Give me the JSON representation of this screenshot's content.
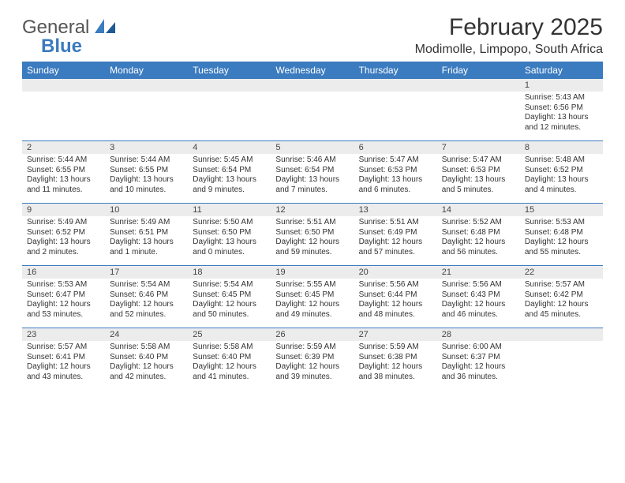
{
  "colors": {
    "accent": "#3b7bbf",
    "header_bg": "#3b7bbf",
    "daynum_bg": "#ececec",
    "text": "#333333",
    "page_bg": "#ffffff"
  },
  "logo": {
    "line1": "General",
    "line2": "Blue"
  },
  "title": "February 2025",
  "location": "Modimolle, Limpopo, South Africa",
  "day_headers": [
    "Sunday",
    "Monday",
    "Tuesday",
    "Wednesday",
    "Thursday",
    "Friday",
    "Saturday"
  ],
  "weeks": [
    [
      {
        "day": "",
        "lines": []
      },
      {
        "day": "",
        "lines": []
      },
      {
        "day": "",
        "lines": []
      },
      {
        "day": "",
        "lines": []
      },
      {
        "day": "",
        "lines": []
      },
      {
        "day": "",
        "lines": []
      },
      {
        "day": "1",
        "lines": [
          "Sunrise: 5:43 AM",
          "Sunset: 6:56 PM",
          "Daylight: 13 hours and 12 minutes."
        ]
      }
    ],
    [
      {
        "day": "2",
        "lines": [
          "Sunrise: 5:44 AM",
          "Sunset: 6:55 PM",
          "Daylight: 13 hours and 11 minutes."
        ]
      },
      {
        "day": "3",
        "lines": [
          "Sunrise: 5:44 AM",
          "Sunset: 6:55 PM",
          "Daylight: 13 hours and 10 minutes."
        ]
      },
      {
        "day": "4",
        "lines": [
          "Sunrise: 5:45 AM",
          "Sunset: 6:54 PM",
          "Daylight: 13 hours and 9 minutes."
        ]
      },
      {
        "day": "5",
        "lines": [
          "Sunrise: 5:46 AM",
          "Sunset: 6:54 PM",
          "Daylight: 13 hours and 7 minutes."
        ]
      },
      {
        "day": "6",
        "lines": [
          "Sunrise: 5:47 AM",
          "Sunset: 6:53 PM",
          "Daylight: 13 hours and 6 minutes."
        ]
      },
      {
        "day": "7",
        "lines": [
          "Sunrise: 5:47 AM",
          "Sunset: 6:53 PM",
          "Daylight: 13 hours and 5 minutes."
        ]
      },
      {
        "day": "8",
        "lines": [
          "Sunrise: 5:48 AM",
          "Sunset: 6:52 PM",
          "Daylight: 13 hours and 4 minutes."
        ]
      }
    ],
    [
      {
        "day": "9",
        "lines": [
          "Sunrise: 5:49 AM",
          "Sunset: 6:52 PM",
          "Daylight: 13 hours and 2 minutes."
        ]
      },
      {
        "day": "10",
        "lines": [
          "Sunrise: 5:49 AM",
          "Sunset: 6:51 PM",
          "Daylight: 13 hours and 1 minute."
        ]
      },
      {
        "day": "11",
        "lines": [
          "Sunrise: 5:50 AM",
          "Sunset: 6:50 PM",
          "Daylight: 13 hours and 0 minutes."
        ]
      },
      {
        "day": "12",
        "lines": [
          "Sunrise: 5:51 AM",
          "Sunset: 6:50 PM",
          "Daylight: 12 hours and 59 minutes."
        ]
      },
      {
        "day": "13",
        "lines": [
          "Sunrise: 5:51 AM",
          "Sunset: 6:49 PM",
          "Daylight: 12 hours and 57 minutes."
        ]
      },
      {
        "day": "14",
        "lines": [
          "Sunrise: 5:52 AM",
          "Sunset: 6:48 PM",
          "Daylight: 12 hours and 56 minutes."
        ]
      },
      {
        "day": "15",
        "lines": [
          "Sunrise: 5:53 AM",
          "Sunset: 6:48 PM",
          "Daylight: 12 hours and 55 minutes."
        ]
      }
    ],
    [
      {
        "day": "16",
        "lines": [
          "Sunrise: 5:53 AM",
          "Sunset: 6:47 PM",
          "Daylight: 12 hours and 53 minutes."
        ]
      },
      {
        "day": "17",
        "lines": [
          "Sunrise: 5:54 AM",
          "Sunset: 6:46 PM",
          "Daylight: 12 hours and 52 minutes."
        ]
      },
      {
        "day": "18",
        "lines": [
          "Sunrise: 5:54 AM",
          "Sunset: 6:45 PM",
          "Daylight: 12 hours and 50 minutes."
        ]
      },
      {
        "day": "19",
        "lines": [
          "Sunrise: 5:55 AM",
          "Sunset: 6:45 PM",
          "Daylight: 12 hours and 49 minutes."
        ]
      },
      {
        "day": "20",
        "lines": [
          "Sunrise: 5:56 AM",
          "Sunset: 6:44 PM",
          "Daylight: 12 hours and 48 minutes."
        ]
      },
      {
        "day": "21",
        "lines": [
          "Sunrise: 5:56 AM",
          "Sunset: 6:43 PM",
          "Daylight: 12 hours and 46 minutes."
        ]
      },
      {
        "day": "22",
        "lines": [
          "Sunrise: 5:57 AM",
          "Sunset: 6:42 PM",
          "Daylight: 12 hours and 45 minutes."
        ]
      }
    ],
    [
      {
        "day": "23",
        "lines": [
          "Sunrise: 5:57 AM",
          "Sunset: 6:41 PM",
          "Daylight: 12 hours and 43 minutes."
        ]
      },
      {
        "day": "24",
        "lines": [
          "Sunrise: 5:58 AM",
          "Sunset: 6:40 PM",
          "Daylight: 12 hours and 42 minutes."
        ]
      },
      {
        "day": "25",
        "lines": [
          "Sunrise: 5:58 AM",
          "Sunset: 6:40 PM",
          "Daylight: 12 hours and 41 minutes."
        ]
      },
      {
        "day": "26",
        "lines": [
          "Sunrise: 5:59 AM",
          "Sunset: 6:39 PM",
          "Daylight: 12 hours and 39 minutes."
        ]
      },
      {
        "day": "27",
        "lines": [
          "Sunrise: 5:59 AM",
          "Sunset: 6:38 PM",
          "Daylight: 12 hours and 38 minutes."
        ]
      },
      {
        "day": "28",
        "lines": [
          "Sunrise: 6:00 AM",
          "Sunset: 6:37 PM",
          "Daylight: 12 hours and 36 minutes."
        ]
      },
      {
        "day": "",
        "lines": []
      }
    ]
  ]
}
